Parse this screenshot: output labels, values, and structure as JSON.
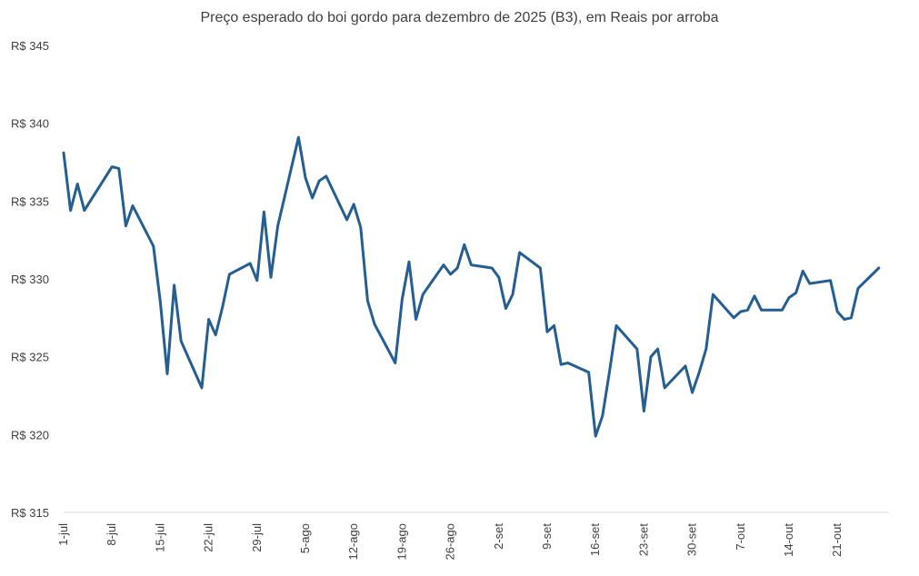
{
  "chart_data": {
    "type": "line",
    "title": "Preço esperado do boi gordo para dezembro de 2025 (B3), em Reais por arroba",
    "xlabel": "",
    "ylabel": "",
    "ylim": [
      315,
      345
    ],
    "yticks": [
      315,
      320,
      325,
      330,
      335,
      340,
      345
    ],
    "ytick_labels": [
      "R$ 315",
      "R$ 320",
      "R$ 325",
      "R$ 330",
      "R$ 335",
      "R$ 340",
      "R$ 345"
    ],
    "xlim": [
      "2025-07-01",
      "2025-10-28"
    ],
    "xticks": [
      "2025-07-01",
      "2025-07-08",
      "2025-07-15",
      "2025-07-22",
      "2025-07-29",
      "2025-08-05",
      "2025-08-12",
      "2025-08-19",
      "2025-08-26",
      "2025-09-02",
      "2025-09-09",
      "2025-09-16",
      "2025-09-23",
      "2025-09-30",
      "2025-10-07",
      "2025-10-14",
      "2025-10-21"
    ],
    "xtick_labels": [
      "1-jul",
      "8-jul",
      "15-jul",
      "22-jul",
      "29-jul",
      "5-ago",
      "12-ago",
      "19-ago",
      "26-ago",
      "2-set",
      "9-set",
      "16-set",
      "23-set",
      "30-set",
      "7-out",
      "14-out",
      "21-out"
    ],
    "grid": false,
    "color": "#255E91",
    "series": [
      {
        "x": [
          "2025-07-01",
          "2025-07-02",
          "2025-07-03",
          "2025-07-04",
          "2025-07-07",
          "2025-07-08",
          "2025-07-09",
          "2025-07-10",
          "2025-07-11",
          "2025-07-14",
          "2025-07-15",
          "2025-07-16",
          "2025-07-17",
          "2025-07-18",
          "2025-07-21",
          "2025-07-22",
          "2025-07-23",
          "2025-07-24",
          "2025-07-25",
          "2025-07-28",
          "2025-07-29",
          "2025-07-30",
          "2025-07-31",
          "2025-08-01",
          "2025-08-04",
          "2025-08-05",
          "2025-08-06",
          "2025-08-07",
          "2025-08-08",
          "2025-08-11",
          "2025-08-12",
          "2025-08-13",
          "2025-08-14",
          "2025-08-15",
          "2025-08-18",
          "2025-08-19",
          "2025-08-20",
          "2025-08-21",
          "2025-08-22",
          "2025-08-25",
          "2025-08-26",
          "2025-08-27",
          "2025-08-28",
          "2025-08-29",
          "2025-09-01",
          "2025-09-02",
          "2025-09-03",
          "2025-09-04",
          "2025-09-05",
          "2025-09-08",
          "2025-09-09",
          "2025-09-10",
          "2025-09-11",
          "2025-09-12",
          "2025-09-15",
          "2025-09-16",
          "2025-09-17",
          "2025-09-18",
          "2025-09-19",
          "2025-09-22",
          "2025-09-23",
          "2025-09-24",
          "2025-09-25",
          "2025-09-26",
          "2025-09-29",
          "2025-09-30",
          "2025-10-01",
          "2025-10-02",
          "2025-10-03",
          "2025-10-06",
          "2025-10-07",
          "2025-10-08",
          "2025-10-09",
          "2025-10-10",
          "2025-10-13",
          "2025-10-14",
          "2025-10-15",
          "2025-10-16",
          "2025-10-17",
          "2025-10-20",
          "2025-10-21",
          "2025-10-22",
          "2025-10-23",
          "2025-10-24",
          "2025-10-27"
        ],
        "values": [
          338.1,
          334.4,
          336.1,
          334.4,
          336.5,
          337.2,
          337.1,
          333.4,
          334.7,
          332.1,
          328.5,
          323.9,
          329.6,
          326.0,
          323.0,
          327.4,
          326.4,
          328.2,
          330.3,
          331.0,
          329.9,
          334.3,
          330.1,
          333.4,
          339.1,
          336.5,
          335.2,
          336.3,
          336.6,
          333.8,
          334.8,
          333.3,
          328.6,
          327.1,
          324.6,
          328.7,
          331.1,
          327.4,
          329.0,
          330.9,
          330.3,
          330.7,
          332.2,
          330.9,
          330.7,
          330.1,
          328.1,
          329.0,
          331.7,
          330.7,
          326.6,
          327.0,
          324.5,
          324.6,
          324.0,
          319.9,
          321.2,
          324.0,
          327.0,
          325.5,
          321.5,
          325.0,
          325.5,
          323.0,
          324.4,
          322.7,
          324.0,
          325.5,
          329.0,
          327.5,
          327.9,
          328.0,
          328.9,
          328.0,
          328.0,
          328.8,
          329.1,
          330.5,
          329.7,
          329.9,
          327.9,
          327.4,
          327.5,
          329.4,
          330.7
        ]
      }
    ]
  }
}
